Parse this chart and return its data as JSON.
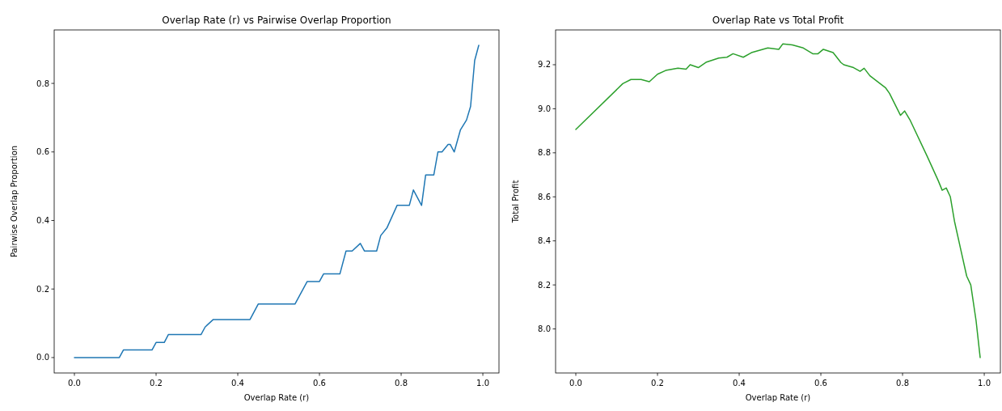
{
  "chart_data": [
    {
      "type": "line",
      "title": "Overlap Rate (r) vs Pairwise Overlap Proportion",
      "xlabel": "Overlap Rate (r)",
      "ylabel": "Pairwise Overlap Proportion",
      "xlim": [
        -0.0495,
        1.0395
      ],
      "ylim": [
        -0.045,
        0.956
      ],
      "xticks": [
        {
          "value": 0,
          "label": "0.0"
        },
        {
          "value": 0.2,
          "label": "0.2"
        },
        {
          "value": 0.4,
          "label": "0.4"
        },
        {
          "value": 0.6,
          "label": "0.6"
        },
        {
          "value": 0.8,
          "label": "0.8"
        },
        {
          "value": 1,
          "label": "1.0"
        }
      ],
      "yticks": [
        {
          "value": 0,
          "label": "0.0"
        },
        {
          "value": 0.2,
          "label": "0.2"
        },
        {
          "value": 0.4,
          "label": "0.4"
        },
        {
          "value": 0.6,
          "label": "0.6"
        },
        {
          "value": 0.8,
          "label": "0.8"
        }
      ],
      "grid": false,
      "series": [
        {
          "color": "#1f77b4",
          "x": [
            0,
            0.11,
            0.12,
            0.19,
            0.2,
            0.22,
            0.23,
            0.31,
            0.32,
            0.34,
            0.43,
            0.45,
            0.54,
            0.57,
            0.6,
            0.61,
            0.65,
            0.665,
            0.68,
            0.7,
            0.71,
            0.74,
            0.75,
            0.765,
            0.79,
            0.82,
            0.83,
            0.85,
            0.86,
            0.88,
            0.89,
            0.9,
            0.915,
            0.92,
            0.93,
            0.945,
            0.96,
            0.97,
            0.98,
            0.99
          ],
          "values": [
            0,
            0,
            0.022,
            0.022,
            0.044,
            0.044,
            0.067,
            0.067,
            0.089,
            0.111,
            0.111,
            0.156,
            0.156,
            0.222,
            0.222,
            0.244,
            0.244,
            0.311,
            0.311,
            0.333,
            0.311,
            0.311,
            0.356,
            0.378,
            0.444,
            0.444,
            0.489,
            0.444,
            0.533,
            0.533,
            0.6,
            0.6,
            0.622,
            0.622,
            0.6,
            0.664,
            0.693,
            0.733,
            0.867,
            0.911
          ]
        }
      ]
    },
    {
      "type": "line",
      "title": "Overlap Rate vs Total Profit",
      "xlabel": "Overlap Rate (r)",
      "ylabel": "Total Profit",
      "xlim": [
        -0.0495,
        1.0395
      ],
      "ylim": [
        7.8,
        9.358
      ],
      "xticks": [
        {
          "value": 0,
          "label": "0.0"
        },
        {
          "value": 0.2,
          "label": "0.2"
        },
        {
          "value": 0.4,
          "label": "0.4"
        },
        {
          "value": 0.6,
          "label": "0.6"
        },
        {
          "value": 0.8,
          "label": "0.8"
        },
        {
          "value": 1,
          "label": "1.0"
        }
      ],
      "yticks": [
        {
          "value": 8,
          "label": "8.0"
        },
        {
          "value": 8.2,
          "label": "8.2"
        },
        {
          "value": 8.4,
          "label": "8.4"
        },
        {
          "value": 8.6,
          "label": "8.6"
        },
        {
          "value": 8.8,
          "label": "8.8"
        },
        {
          "value": 9,
          "label": "9.0"
        },
        {
          "value": 9.2,
          "label": "9.2"
        }
      ],
      "grid": false,
      "series": [
        {
          "color": "#2ca02c",
          "x": [
            0,
            0.115,
            0.135,
            0.16,
            0.18,
            0.2,
            0.22,
            0.25,
            0.27,
            0.28,
            0.3,
            0.32,
            0.35,
            0.37,
            0.385,
            0.41,
            0.43,
            0.47,
            0.497,
            0.507,
            0.53,
            0.557,
            0.58,
            0.593,
            0.606,
            0.63,
            0.649,
            0.656,
            0.68,
            0.696,
            0.706,
            0.72,
            0.758,
            0.768,
            0.795,
            0.805,
            0.818,
            0.86,
            0.887,
            0.897,
            0.907,
            0.917,
            0.927,
            0.943,
            0.957,
            0.967,
            0.98,
            0.99
          ],
          "values": [
            8.906,
            9.114,
            9.133,
            9.133,
            9.123,
            9.157,
            9.174,
            9.184,
            9.18,
            9.2,
            9.187,
            9.212,
            9.23,
            9.234,
            9.25,
            9.234,
            9.255,
            9.276,
            9.27,
            9.295,
            9.29,
            9.276,
            9.25,
            9.25,
            9.27,
            9.255,
            9.21,
            9.2,
            9.187,
            9.17,
            9.184,
            9.15,
            9.096,
            9.07,
            8.97,
            8.99,
            8.95,
            8.785,
            8.675,
            8.63,
            8.64,
            8.6,
            8.49,
            8.356,
            8.24,
            8.2,
            8.037,
            7.87
          ]
        }
      ]
    }
  ]
}
